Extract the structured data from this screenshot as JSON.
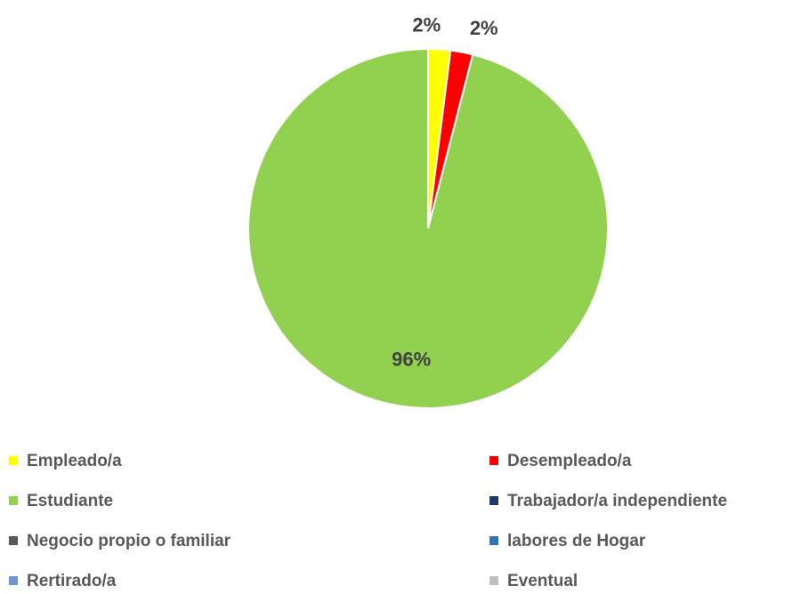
{
  "chart_data": {
    "type": "pie",
    "categories": [
      "Empleado/a",
      "Desempleado/a",
      "Estudiante",
      "Trabajador/a independiente",
      "Negocio propio o familiar",
      "labores de Hogar",
      "Rertirado/a",
      "Eventual"
    ],
    "values": [
      2,
      2,
      96,
      0,
      0,
      0,
      0,
      0
    ],
    "value_labels": [
      "2%",
      "2%",
      "96%",
      null,
      null,
      null,
      null,
      null
    ],
    "colors": [
      "#ffff00",
      "#ff0000",
      "#92d050",
      "#1f3864",
      "#595959",
      "#2e75b6",
      "#7094d8",
      "#bfbfbf"
    ],
    "legend": "bottom"
  }
}
